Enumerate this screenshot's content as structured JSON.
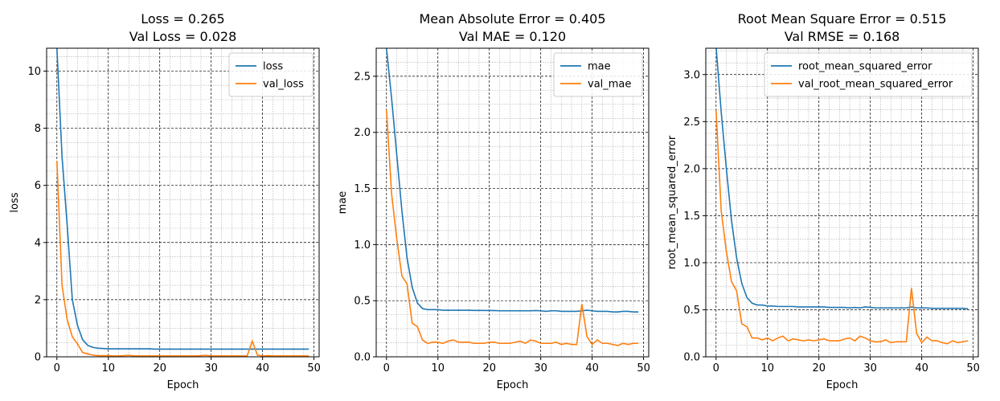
{
  "chart_data": [
    {
      "type": "line",
      "title_line1": "Loss = 0.265",
      "title_line2": "Val Loss = 0.028",
      "xlabel": "Epoch",
      "ylabel": "loss",
      "xlim": [
        -2,
        51
      ],
      "ylim": [
        0,
        10.8
      ],
      "xticks": [
        0,
        10,
        20,
        30,
        40,
        50
      ],
      "yticks": [
        0,
        2,
        4,
        6,
        8,
        10
      ],
      "yminor_step": 0.5,
      "legend_position": "upper-right",
      "grid": true,
      "series": [
        {
          "name": "loss",
          "color": "#1f77b4",
          "values": [
            10.8,
            7.0,
            4.6,
            2.0,
            1.1,
            0.6,
            0.4,
            0.33,
            0.3,
            0.29,
            0.28,
            0.28,
            0.28,
            0.28,
            0.28,
            0.28,
            0.28,
            0.28,
            0.28,
            0.27,
            0.27,
            0.27,
            0.27,
            0.27,
            0.27,
            0.27,
            0.27,
            0.27,
            0.27,
            0.27,
            0.27,
            0.27,
            0.27,
            0.27,
            0.27,
            0.27,
            0.27,
            0.27,
            0.27,
            0.27,
            0.27,
            0.27,
            0.27,
            0.27,
            0.27,
            0.27,
            0.27,
            0.27,
            0.27,
            0.27
          ]
        },
        {
          "name": "val_loss",
          "color": "#ff7f0e",
          "values": [
            6.85,
            2.5,
            1.3,
            0.7,
            0.45,
            0.15,
            0.1,
            0.06,
            0.04,
            0.04,
            0.04,
            0.03,
            0.03,
            0.04,
            0.05,
            0.03,
            0.03,
            0.03,
            0.03,
            0.03,
            0.03,
            0.03,
            0.03,
            0.03,
            0.03,
            0.03,
            0.03,
            0.03,
            0.04,
            0.05,
            0.03,
            0.03,
            0.03,
            0.03,
            0.03,
            0.03,
            0.03,
            0.03,
            0.55,
            0.06,
            0.03,
            0.04,
            0.03,
            0.03,
            0.03,
            0.03,
            0.03,
            0.03,
            0.03,
            0.03
          ]
        }
      ]
    },
    {
      "type": "line",
      "title_line1": "Mean Absolute Error = 0.405",
      "title_line2": "Val MAE = 0.120",
      "xlabel": "Epoch",
      "ylabel": "mae",
      "xlim": [
        -2,
        51
      ],
      "ylim": [
        0,
        2.75
      ],
      "xticks": [
        0,
        10,
        20,
        30,
        40,
        50
      ],
      "yticks": [
        0.0,
        0.5,
        1.0,
        1.5,
        2.0,
        2.5
      ],
      "ytick_labels": [
        "0.0",
        "0.5",
        "1.0",
        "1.5",
        "2.0",
        "2.5"
      ],
      "yminor_step": 0.125,
      "legend_position": "upper-right",
      "grid": true,
      "series": [
        {
          "name": "mae",
          "color": "#1f77b4",
          "values": [
            2.75,
            2.3,
            1.8,
            1.3,
            0.88,
            0.62,
            0.48,
            0.43,
            0.42,
            0.42,
            0.42,
            0.415,
            0.415,
            0.415,
            0.415,
            0.415,
            0.415,
            0.413,
            0.413,
            0.413,
            0.412,
            0.412,
            0.41,
            0.41,
            0.41,
            0.41,
            0.41,
            0.41,
            0.41,
            0.412,
            0.41,
            0.405,
            0.41,
            0.41,
            0.405,
            0.405,
            0.405,
            0.405,
            0.41,
            0.415,
            0.41,
            0.405,
            0.405,
            0.405,
            0.4,
            0.4,
            0.405,
            0.405,
            0.4,
            0.4
          ]
        },
        {
          "name": "val_mae",
          "color": "#ff7f0e",
          "values": [
            2.2,
            1.45,
            1.05,
            0.72,
            0.65,
            0.3,
            0.27,
            0.15,
            0.12,
            0.13,
            0.13,
            0.12,
            0.14,
            0.15,
            0.13,
            0.13,
            0.13,
            0.12,
            0.12,
            0.12,
            0.13,
            0.13,
            0.12,
            0.12,
            0.12,
            0.13,
            0.14,
            0.12,
            0.15,
            0.14,
            0.12,
            0.12,
            0.12,
            0.13,
            0.11,
            0.12,
            0.11,
            0.11,
            0.47,
            0.18,
            0.11,
            0.15,
            0.12,
            0.12,
            0.11,
            0.1,
            0.12,
            0.11,
            0.12,
            0.12
          ]
        }
      ]
    },
    {
      "type": "line",
      "title_line1": "Root Mean Square Error = 0.515",
      "title_line2": "Val RMSE = 0.168",
      "xlabel": "Epoch",
      "ylabel": "root_mean_squared_error",
      "xlim": [
        -2,
        51
      ],
      "ylim": [
        0,
        3.28
      ],
      "xticks": [
        0,
        10,
        20,
        30,
        40,
        50
      ],
      "yticks": [
        0.0,
        0.5,
        1.0,
        1.5,
        2.0,
        2.5,
        3.0
      ],
      "ytick_labels": [
        "0.0",
        "0.5",
        "1.0",
        "1.5",
        "2.0",
        "2.5",
        "3.0"
      ],
      "yminor_step": 0.125,
      "legend_position": "upper-right",
      "grid": true,
      "series": [
        {
          "name": "root_mean_squared_error",
          "color": "#1f77b4",
          "values": [
            3.3,
            2.6,
            2.0,
            1.45,
            1.05,
            0.78,
            0.63,
            0.57,
            0.55,
            0.55,
            0.54,
            0.54,
            0.535,
            0.535,
            0.535,
            0.535,
            0.53,
            0.53,
            0.53,
            0.53,
            0.53,
            0.53,
            0.525,
            0.525,
            0.525,
            0.525,
            0.52,
            0.525,
            0.52,
            0.53,
            0.525,
            0.52,
            0.52,
            0.52,
            0.52,
            0.52,
            0.52,
            0.52,
            0.53,
            0.52,
            0.52,
            0.52,
            0.515,
            0.515,
            0.515,
            0.515,
            0.515,
            0.515,
            0.515,
            0.51
          ]
        },
        {
          "name": "val_root_mean_squared_error",
          "color": "#ff7f0e",
          "values": [
            2.62,
            1.55,
            1.12,
            0.8,
            0.7,
            0.35,
            0.32,
            0.2,
            0.2,
            0.18,
            0.2,
            0.17,
            0.2,
            0.22,
            0.17,
            0.19,
            0.18,
            0.17,
            0.18,
            0.17,
            0.18,
            0.19,
            0.17,
            0.17,
            0.17,
            0.19,
            0.2,
            0.17,
            0.22,
            0.2,
            0.17,
            0.16,
            0.16,
            0.18,
            0.15,
            0.16,
            0.16,
            0.16,
            0.73,
            0.25,
            0.15,
            0.21,
            0.17,
            0.17,
            0.15,
            0.14,
            0.17,
            0.15,
            0.16,
            0.17
          ]
        }
      ]
    }
  ]
}
